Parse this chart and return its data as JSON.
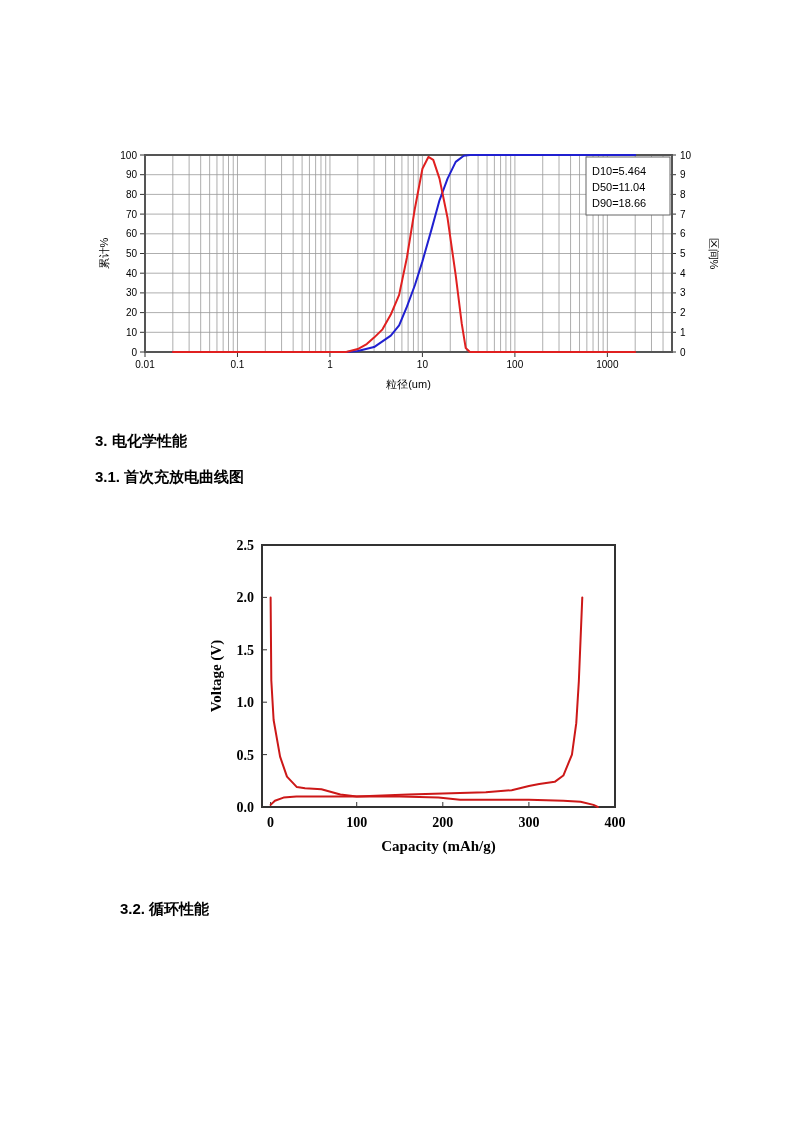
{
  "chart_data": [
    {
      "type": "line",
      "xlabel": "粒径(um)",
      "ylabel": "累计%",
      "y2label": "区间%",
      "log": "x",
      "grid": true,
      "xlim": [
        0.01,
        5000
      ],
      "xticks": [
        0.01,
        0.1,
        1,
        10,
        100,
        1000
      ],
      "ylim": [
        0,
        100
      ],
      "yticks": [
        0,
        10,
        20,
        30,
        40,
        50,
        60,
        70,
        80,
        90,
        100
      ],
      "y2lim": [
        0,
        10
      ],
      "y2ticks": [
        0,
        1,
        2,
        3,
        4,
        5,
        6,
        7,
        8,
        9,
        10
      ],
      "annotations": [
        "D10=5.464",
        "D50=11.04",
        "D90=18.66"
      ],
      "series": [
        {
          "color": "#2020d0",
          "x": [
            0.02,
            1.5,
            2,
            3,
            4.55,
            5.6,
            6.8,
            8.3,
            10,
            12.5,
            15.3,
            18.7,
            22.9,
            28,
            32.6,
            2000
          ],
          "values": [
            0,
            0,
            0.5,
            2.5,
            8.3,
            13.5,
            23,
            34,
            46,
            62,
            77,
            88,
            96.5,
            99.6,
            100,
            100
          ]
        },
        {
          "color": "#e02020",
          "axis": "y2",
          "x": [
            0.02,
            1.5,
            2,
            2.5,
            3,
            3.7,
            4.55,
            5.6,
            6.8,
            8.3,
            10,
            11.6,
            13.1,
            15.3,
            18.7,
            22.9,
            26.6,
            29.4,
            32.6,
            2000
          ],
          "values": [
            0,
            0,
            0.15,
            0.4,
            0.73,
            1.15,
            1.9,
            2.9,
            4.8,
            7.3,
            9.3,
            9.9,
            9.75,
            8.8,
            6.8,
            3.9,
            1.45,
            0.2,
            0,
            0
          ]
        }
      ]
    },
    {
      "type": "line",
      "title": "3.1. 首次充放电曲线图",
      "annotations": [
        "3. 电化学性能",
        "3.2. 循环性能"
      ],
      "xlabel": "Capacity (mAh/g)",
      "ylabel": "Voltage (V)",
      "xlim": [
        -10,
        400
      ],
      "xticks": [
        0,
        100,
        200,
        300,
        400
      ],
      "ylim": [
        0,
        2.5
      ],
      "yticks": [
        {
          "value": 0,
          "label": "0.0"
        },
        {
          "value": 0.5,
          "label": "0.5"
        },
        {
          "value": 1,
          "label": "1.0"
        },
        {
          "value": 1.5,
          "label": "1.5"
        },
        {
          "value": 2,
          "label": "2.0"
        },
        {
          "value": 2.5,
          "label": "2.5"
        }
      ],
      "series": [
        {
          "color": "#cc1818",
          "x": [
            0,
            0.8,
            3.5,
            11,
            19,
            30.5,
            40,
            59,
            81,
            100,
            150,
            195,
            220,
            300,
            340,
            360,
            375,
            380
          ],
          "values": [
            2.0,
            1.21,
            0.83,
            0.48,
            0.29,
            0.19,
            0.18,
            0.17,
            0.12,
            0.1,
            0.1,
            0.09,
            0.07,
            0.07,
            0.06,
            0.05,
            0.02,
            0
          ]
        },
        {
          "color": "#cc1818",
          "x": [
            0,
            5,
            15,
            30,
            100,
            130,
            160,
            200,
            250,
            280,
            300,
            312,
            330,
            340,
            350,
            355,
            358,
            360,
            362
          ],
          "values": [
            0.02,
            0.06,
            0.09,
            0.1,
            0.1,
            0.11,
            0.12,
            0.13,
            0.14,
            0.16,
            0.2,
            0.22,
            0.24,
            0.3,
            0.5,
            0.8,
            1.2,
            1.6,
            2.0
          ]
        }
      ]
    }
  ]
}
